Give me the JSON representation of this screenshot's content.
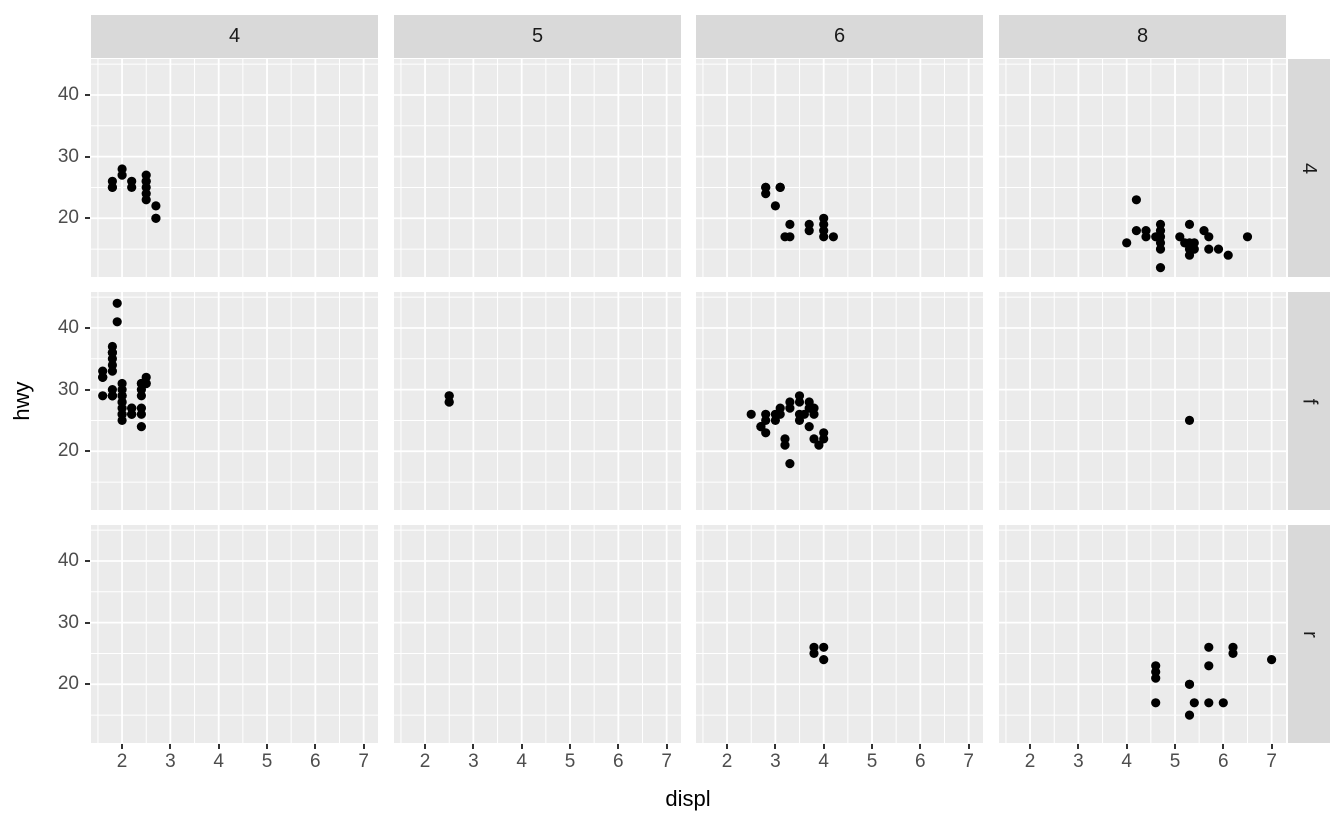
{
  "chart_data": {
    "type": "scatter",
    "title": "",
    "xlabel": "displ",
    "ylabel": "hwy",
    "legend": "none",
    "grid": "on",
    "facet": {
      "layout": "grid",
      "col_variable_values": [
        "4",
        "5",
        "6",
        "8"
      ],
      "row_variable_values": [
        "4",
        "f",
        "r"
      ]
    },
    "x_ticks": [
      2,
      3,
      4,
      5,
      6,
      7
    ],
    "y_ticks": [
      20,
      30,
      40
    ],
    "x_tick_labels": [
      "2",
      "3",
      "4",
      "5",
      "6",
      "7"
    ],
    "y_tick_labels": [
      "20",
      "30",
      "40"
    ],
    "x_minor_gridlines": [
      1.5,
      2.5,
      3.5,
      4.5,
      5.5,
      6.5
    ],
    "y_minor_gridlines": [
      15,
      25,
      35,
      45
    ],
    "x_range": [
      1.36,
      7.3
    ],
    "y_range": [
      10.5,
      45.8
    ],
    "colors": {
      "point": "#000000",
      "panel_background": "#EBEBEB",
      "strip_background": "#D9D9D9",
      "gridline": "#FFFFFF",
      "tick_mark": "#333333",
      "tick_label": "#4D4D4D",
      "strip_text": "#1A1A1A",
      "axis_title": "#000000"
    },
    "panels": [
      {
        "col": "4",
        "row": "4",
        "points": [
          [
            1.8,
            26
          ],
          [
            1.8,
            25
          ],
          [
            1.8,
            25
          ],
          [
            2.0,
            28
          ],
          [
            2.0,
            27
          ],
          [
            2.2,
            26
          ],
          [
            2.2,
            25
          ],
          [
            2.5,
            27
          ],
          [
            2.5,
            26
          ],
          [
            2.5,
            26
          ],
          [
            2.5,
            25
          ],
          [
            2.5,
            24
          ],
          [
            2.5,
            23
          ],
          [
            2.7,
            22
          ],
          [
            2.7,
            20
          ],
          [
            2.7,
            20
          ]
        ]
      },
      {
        "col": "5",
        "row": "4",
        "points": []
      },
      {
        "col": "6",
        "row": "4",
        "points": [
          [
            2.8,
            25
          ],
          [
            2.8,
            25
          ],
          [
            2.8,
            24
          ],
          [
            3.0,
            22
          ],
          [
            3.1,
            25
          ],
          [
            3.1,
            25
          ],
          [
            3.1,
            25
          ],
          [
            3.2,
            17
          ],
          [
            3.3,
            19
          ],
          [
            3.3,
            17
          ],
          [
            3.7,
            19
          ],
          [
            3.7,
            18
          ],
          [
            4.0,
            20
          ],
          [
            4.0,
            19
          ],
          [
            4.0,
            18
          ],
          [
            4.0,
            17
          ],
          [
            4.2,
            17
          ]
        ]
      },
      {
        "col": "8",
        "row": "4",
        "points": [
          [
            4.0,
            16
          ],
          [
            4.2,
            23
          ],
          [
            4.2,
            18
          ],
          [
            4.4,
            18
          ],
          [
            4.4,
            17
          ],
          [
            4.6,
            17
          ],
          [
            4.7,
            19
          ],
          [
            4.7,
            18
          ],
          [
            4.7,
            17
          ],
          [
            4.7,
            16
          ],
          [
            4.7,
            15
          ],
          [
            4.7,
            12
          ],
          [
            5.1,
            17
          ],
          [
            5.2,
            16
          ],
          [
            5.3,
            19
          ],
          [
            5.3,
            16
          ],
          [
            5.3,
            15
          ],
          [
            5.3,
            14
          ],
          [
            5.4,
            16
          ],
          [
            5.4,
            15
          ],
          [
            5.6,
            18
          ],
          [
            5.7,
            17
          ],
          [
            5.7,
            15
          ],
          [
            5.9,
            15
          ],
          [
            6.1,
            14
          ],
          [
            6.5,
            17
          ]
        ]
      },
      {
        "col": "4",
        "row": "f",
        "points": [
          [
            1.6,
            33
          ],
          [
            1.6,
            32
          ],
          [
            1.6,
            32
          ],
          [
            1.6,
            32
          ],
          [
            1.6,
            29
          ],
          [
            1.8,
            37
          ],
          [
            1.8,
            36
          ],
          [
            1.8,
            36
          ],
          [
            1.8,
            35
          ],
          [
            1.8,
            34
          ],
          [
            1.8,
            33
          ],
          [
            1.8,
            30
          ],
          [
            1.8,
            29
          ],
          [
            1.8,
            29
          ],
          [
            1.8,
            29
          ],
          [
            1.8,
            29
          ],
          [
            1.9,
            44
          ],
          [
            1.9,
            41
          ],
          [
            2.0,
            31
          ],
          [
            2.0,
            30
          ],
          [
            2.0,
            29
          ],
          [
            2.0,
            29
          ],
          [
            2.0,
            29
          ],
          [
            2.0,
            28
          ],
          [
            2.0,
            28
          ],
          [
            2.0,
            27
          ],
          [
            2.0,
            26
          ],
          [
            2.0,
            26
          ],
          [
            2.0,
            25
          ],
          [
            2.2,
            27
          ],
          [
            2.2,
            27
          ],
          [
            2.2,
            26
          ],
          [
            2.2,
            26
          ],
          [
            2.4,
            31
          ],
          [
            2.4,
            31
          ],
          [
            2.4,
            30
          ],
          [
            2.4,
            29
          ],
          [
            2.4,
            27
          ],
          [
            2.4,
            26
          ],
          [
            2.4,
            24
          ],
          [
            2.5,
            32
          ],
          [
            2.5,
            31
          ],
          [
            2.5,
            31
          ]
        ]
      },
      {
        "col": "5",
        "row": "f",
        "points": [
          [
            2.5,
            29
          ],
          [
            2.5,
            29
          ],
          [
            2.5,
            28
          ],
          [
            2.5,
            28
          ]
        ]
      },
      {
        "col": "6",
        "row": "f",
        "points": [
          [
            2.5,
            26
          ],
          [
            2.7,
            24
          ],
          [
            2.7,
            24
          ],
          [
            2.8,
            26
          ],
          [
            2.8,
            25
          ],
          [
            2.8,
            23
          ],
          [
            3.0,
            26
          ],
          [
            3.0,
            25
          ],
          [
            3.1,
            27
          ],
          [
            3.1,
            26
          ],
          [
            3.2,
            22
          ],
          [
            3.2,
            21
          ],
          [
            3.3,
            28
          ],
          [
            3.3,
            27
          ],
          [
            3.3,
            18
          ],
          [
            3.5,
            29
          ],
          [
            3.5,
            28
          ],
          [
            3.5,
            26
          ],
          [
            3.5,
            25
          ],
          [
            3.6,
            26
          ],
          [
            3.7,
            28
          ],
          [
            3.7,
            27
          ],
          [
            3.7,
            24
          ],
          [
            3.8,
            27
          ],
          [
            3.8,
            26
          ],
          [
            3.8,
            22
          ],
          [
            3.9,
            21
          ],
          [
            4.0,
            23
          ],
          [
            4.0,
            22
          ]
        ]
      },
      {
        "col": "8",
        "row": "f",
        "points": [
          [
            5.3,
            25
          ]
        ]
      },
      {
        "col": "4",
        "row": "r",
        "points": []
      },
      {
        "col": "5",
        "row": "r",
        "points": []
      },
      {
        "col": "6",
        "row": "r",
        "points": [
          [
            3.8,
            26
          ],
          [
            3.8,
            25
          ],
          [
            4.0,
            26
          ],
          [
            4.0,
            24
          ]
        ]
      },
      {
        "col": "8",
        "row": "r",
        "points": [
          [
            4.6,
            23
          ],
          [
            4.6,
            22
          ],
          [
            4.6,
            21
          ],
          [
            4.6,
            17
          ],
          [
            5.3,
            20
          ],
          [
            5.3,
            20
          ],
          [
            5.3,
            15
          ],
          [
            5.4,
            17
          ],
          [
            5.7,
            26
          ],
          [
            5.7,
            23
          ],
          [
            5.7,
            17
          ],
          [
            6.0,
            17
          ],
          [
            6.2,
            26
          ],
          [
            6.2,
            25
          ],
          [
            7.0,
            24
          ]
        ]
      }
    ]
  }
}
